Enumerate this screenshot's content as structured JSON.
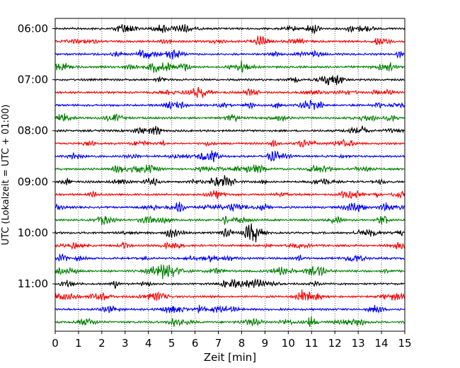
{
  "chart_data": {
    "type": "line",
    "subtype": "helicorder",
    "xlabel": "Zeit  [min]",
    "ylabel": "UTC (Lokalzeit = UTC + 01:00)",
    "xlim": [
      0,
      15
    ],
    "x_ticks": [
      "0",
      "1",
      "2",
      "3",
      "4",
      "5",
      "6",
      "7",
      "8",
      "9",
      "10",
      "11",
      "12",
      "13",
      "14",
      "15"
    ],
    "y_ticks": [
      "06:00",
      "07:00",
      "08:00",
      "09:00",
      "10:00",
      "11:00"
    ],
    "y_tick_rows": [
      0,
      4,
      8,
      12,
      16,
      20
    ],
    "grid": "vertical dotted at each minute",
    "trace_interval_minutes": 15,
    "traces": [
      {
        "start": "06:00",
        "color": "#000000"
      },
      {
        "start": "06:15",
        "color": "#ff0000"
      },
      {
        "start": "06:30",
        "color": "#0000ff"
      },
      {
        "start": "06:45",
        "color": "#008000"
      },
      {
        "start": "07:00",
        "color": "#000000"
      },
      {
        "start": "07:15",
        "color": "#ff0000"
      },
      {
        "start": "07:30",
        "color": "#0000ff"
      },
      {
        "start": "07:45",
        "color": "#008000"
      },
      {
        "start": "08:00",
        "color": "#000000"
      },
      {
        "start": "08:15",
        "color": "#ff0000"
      },
      {
        "start": "08:30",
        "color": "#0000ff"
      },
      {
        "start": "08:45",
        "color": "#008000"
      },
      {
        "start": "09:00",
        "color": "#000000"
      },
      {
        "start": "09:15",
        "color": "#ff0000"
      },
      {
        "start": "09:30",
        "color": "#0000ff"
      },
      {
        "start": "09:45",
        "color": "#008000"
      },
      {
        "start": "10:00",
        "color": "#000000"
      },
      {
        "start": "10:15",
        "color": "#ff0000"
      },
      {
        "start": "10:30",
        "color": "#0000ff"
      },
      {
        "start": "10:45",
        "color": "#008000"
      },
      {
        "start": "11:00",
        "color": "#000000"
      },
      {
        "start": "11:15",
        "color": "#ff0000"
      },
      {
        "start": "11:30",
        "color": "#0000ff"
      },
      {
        "start": "11:45",
        "color": "#008000"
      }
    ]
  }
}
